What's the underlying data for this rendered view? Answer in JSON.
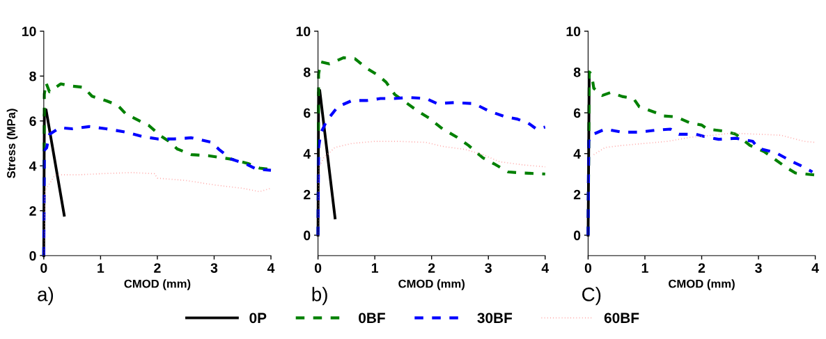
{
  "chart_data": [
    {
      "type": "line",
      "ylabel": "Stress (MPa)",
      "xlabel": "CMOD (mm)",
      "annotations": [
        "a)"
      ],
      "xlim": [
        0,
        4
      ],
      "ylim": [
        0,
        10
      ],
      "xticks": [
        0,
        1,
        2,
        3,
        4
      ],
      "yticks": [
        0,
        2,
        4,
        6,
        8,
        10
      ],
      "grid": false,
      "legend": "bottom",
      "series": [
        {
          "name": "0P",
          "color": "#000000",
          "line_style": "solid",
          "x": [
            0,
            0.01,
            0.04,
            0.36
          ],
          "values": [
            0,
            6.3,
            6.5,
            1.8
          ]
        },
        {
          "name": "0BF",
          "color": "#008000",
          "line_style": "dashed",
          "x": [
            0,
            0.01,
            0.04,
            0.1,
            0.3,
            0.5,
            0.7,
            0.85,
            1.1,
            1.3,
            1.45,
            1.65,
            1.85,
            2.05,
            2.2,
            2.35,
            2.6,
            2.9,
            3.3,
            3.6,
            3.8,
            3.95
          ],
          "values": [
            0,
            7.2,
            7.7,
            7.3,
            7.65,
            7.55,
            7.5,
            7.1,
            6.9,
            6.7,
            6.3,
            6.05,
            5.8,
            5.35,
            5.1,
            4.75,
            4.5,
            4.45,
            4.3,
            4.1,
            3.9,
            3.85
          ]
        },
        {
          "name": "30BF",
          "color": "#0000ff",
          "line_style": "dashed",
          "x": [
            0,
            0.01,
            0.05,
            0.1,
            0.28,
            0.5,
            0.8,
            1.1,
            1.45,
            1.75,
            2.0,
            2.3,
            2.6,
            2.95,
            3.1,
            3.3,
            3.55,
            3.75,
            4.0
          ],
          "values": [
            0,
            4.7,
            4.8,
            5.4,
            5.7,
            5.65,
            5.75,
            5.65,
            5.5,
            5.3,
            5.2,
            5.2,
            5.25,
            5.05,
            4.7,
            4.3,
            4.1,
            3.85,
            3.8
          ]
        },
        {
          "name": "60BF",
          "color": "#ff9999",
          "line_style": "dotted",
          "x": [
            0,
            0.02,
            0.1,
            0.2,
            0.6,
            1.0,
            1.55,
            1.95,
            2.0,
            2.5,
            3.0,
            3.5,
            3.8,
            4.0
          ],
          "values": [
            0,
            2.9,
            3.2,
            3.6,
            3.6,
            3.65,
            3.7,
            3.65,
            3.45,
            3.35,
            3.15,
            3.0,
            2.85,
            3.0
          ]
        }
      ]
    },
    {
      "type": "line",
      "xlabel": "CMOD (mm)",
      "annotations": [
        "b)"
      ],
      "xlim": [
        0,
        4
      ],
      "ylim": [
        -1,
        10
      ],
      "xticks": [
        0,
        1,
        2,
        3,
        4
      ],
      "yticks": [
        0,
        2,
        4,
        6,
        8,
        10
      ],
      "grid": false,
      "series": [
        {
          "color": "#000000",
          "line_style": "solid",
          "x": [
            0,
            0.01,
            0.03,
            0.3
          ],
          "values": [
            0,
            7.0,
            7.1,
            0.85
          ]
        },
        {
          "color": "#008000",
          "line_style": "dashed",
          "x": [
            0,
            0.01,
            0.05,
            0.2,
            0.45,
            0.65,
            0.85,
            1.05,
            1.2,
            1.35,
            1.55,
            1.75,
            1.95,
            2.2,
            2.45,
            2.65,
            2.9,
            3.1,
            3.35,
            3.6,
            4.0
          ],
          "values": [
            0,
            7.9,
            8.5,
            8.4,
            8.7,
            8.65,
            8.2,
            7.85,
            7.5,
            6.9,
            6.5,
            6.1,
            5.75,
            5.2,
            4.8,
            4.4,
            3.8,
            3.5,
            3.1,
            3.05,
            3.0
          ]
        },
        {
          "color": "#0000ff",
          "line_style": "dashed",
          "x": [
            0,
            0.01,
            0.05,
            0.15,
            0.35,
            0.6,
            0.85,
            1.1,
            1.35,
            1.6,
            1.9,
            2.1,
            2.4,
            2.75,
            3.0,
            3.3,
            3.5,
            3.7,
            3.85,
            4.0
          ],
          "values": [
            0,
            4.3,
            5.0,
            5.6,
            6.3,
            6.6,
            6.6,
            6.7,
            6.7,
            6.75,
            6.7,
            6.45,
            6.5,
            6.45,
            6.1,
            5.8,
            5.7,
            5.5,
            5.2,
            5.3
          ]
        },
        {
          "color": "#ff9999",
          "line_style": "dotted",
          "x": [
            0,
            0.01,
            0.1,
            0.3,
            0.6,
            1.0,
            1.4,
            1.9,
            2.2,
            2.6,
            2.9,
            3.2,
            3.6,
            4.0
          ],
          "values": [
            0,
            3.3,
            3.8,
            4.3,
            4.5,
            4.6,
            4.6,
            4.55,
            4.35,
            4.2,
            3.95,
            3.6,
            3.45,
            3.35
          ]
        }
      ]
    },
    {
      "type": "line",
      "xlabel": "CMOD (mm)",
      "annotations": [
        "C)"
      ],
      "xlim": [
        0,
        4
      ],
      "ylim": [
        -1,
        10
      ],
      "xticks": [
        0,
        1,
        2,
        3,
        4
      ],
      "yticks": [
        0,
        2,
        4,
        6,
        8,
        10
      ],
      "grid": false,
      "series": [
        {
          "color": "#000000",
          "line_style": "solid",
          "x": [
            0,
            0.02
          ],
          "values": [
            0,
            7.9
          ]
        },
        {
          "color": "#008000",
          "line_style": "dashed",
          "x": [
            0,
            0.02,
            0.06,
            0.1,
            0.25,
            0.4,
            0.6,
            0.8,
            0.9,
            1.2,
            1.3,
            1.55,
            1.8,
            2.0,
            2.1,
            2.4,
            2.6,
            2.85,
            3.1,
            3.3,
            3.5,
            3.65,
            4.0
          ],
          "values": [
            0,
            8.0,
            7.9,
            7.2,
            6.85,
            7.0,
            6.8,
            6.7,
            6.3,
            6.0,
            5.85,
            5.8,
            5.5,
            5.4,
            5.2,
            5.1,
            4.95,
            4.4,
            4.1,
            3.7,
            3.3,
            3.05,
            2.95
          ]
        },
        {
          "color": "#0000ff",
          "line_style": "dashed",
          "x": [
            0,
            0.01,
            0.05,
            0.3,
            0.6,
            0.9,
            1.2,
            1.45,
            1.6,
            1.9,
            2.1,
            2.3,
            2.6,
            2.9,
            3.0,
            3.3,
            3.5,
            3.6,
            3.75,
            3.95
          ],
          "values": [
            0,
            4.6,
            4.9,
            5.2,
            5.05,
            5.05,
            5.15,
            5.2,
            4.95,
            4.95,
            4.8,
            4.7,
            4.75,
            4.6,
            4.25,
            4.05,
            3.75,
            3.6,
            3.4,
            3.1
          ]
        },
        {
          "color": "#ff9999",
          "line_style": "dotted",
          "x": [
            0.1,
            0.3,
            0.6,
            1.0,
            1.4,
            1.8,
            2.2,
            2.5,
            3.0,
            3.4,
            3.6,
            3.8,
            4.0
          ],
          "values": [
            3.95,
            4.3,
            4.4,
            4.5,
            4.6,
            4.8,
            4.9,
            5.0,
            4.95,
            4.9,
            4.75,
            4.6,
            4.55
          ]
        }
      ]
    }
  ]
}
